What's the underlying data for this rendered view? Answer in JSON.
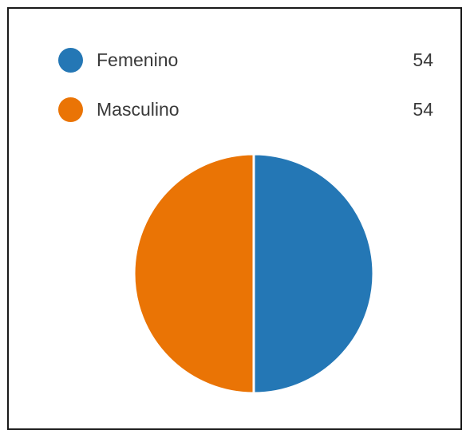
{
  "chart_data": {
    "type": "pie",
    "categories": [
      "Femenino",
      "Masculino"
    ],
    "values": [
      54,
      54
    ],
    "colors": [
      "#2477b5",
      "#ea7405"
    ],
    "legend": "top"
  }
}
